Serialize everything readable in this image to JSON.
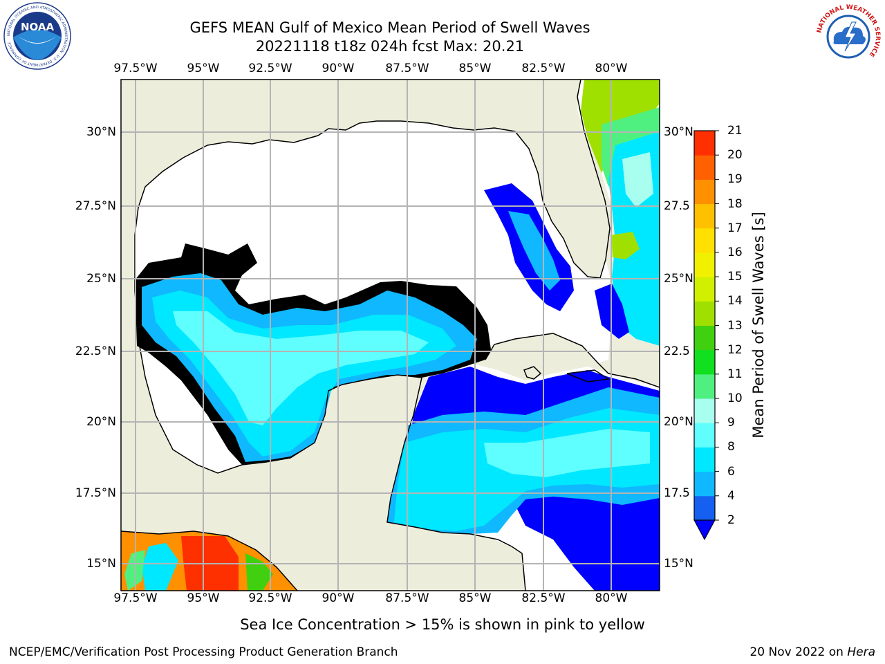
{
  "header": {
    "title_line1": "GEFS MEAN Gulf of Mexico Mean Period of Swell Waves",
    "title_line2": "20221118 t18z 024h fcst   Max: 20.21"
  },
  "axes": {
    "lon_labels": [
      "97.5°W",
      "95°W",
      "92.5°W",
      "90°W",
      "87.5°W",
      "85°W",
      "82.5°W",
      "80°W"
    ],
    "lat_labels": [
      "30°N",
      "27.5°N",
      "25°N",
      "22.5°N",
      "20°N",
      "17.5°N",
      "15°N"
    ],
    "lat_labels_right": [
      "30°N",
      "27.5",
      "25°N",
      "22.5",
      "20°N",
      "17.5",
      "15°N"
    ]
  },
  "colorbar": {
    "label": "Mean Period of Swell Waves [s]",
    "ticks": [
      "2",
      "4",
      "6",
      "8",
      "9",
      "10",
      "11",
      "12",
      "13",
      "14",
      "15",
      "16",
      "17",
      "18",
      "19",
      "20",
      "21"
    ],
    "colors": [
      "#1560f0",
      "#10b8ff",
      "#00e8ff",
      "#60ffff",
      "#a8fff0",
      "#50f080",
      "#10e020",
      "#40d010",
      "#a0e000",
      "#d0f000",
      "#f0f000",
      "#ffe000",
      "#ffc000",
      "#ff9000",
      "#ff6000",
      "#ff3000",
      "#f00000"
    ],
    "under_color": "#0000ff"
  },
  "colors": {
    "land": "#ededdc",
    "no_data": "#ffffff",
    "grid": "#b4b4b4"
  },
  "footer": {
    "note": "Sea Ice Concentration > 15% is shown in pink to yellow",
    "credit": "NCEP/EMC/Verification Post Processing Product Generation Branch",
    "date": "20 Nov 2022 on ",
    "host": "Hera"
  },
  "logos": {
    "noaa_text": "NOAA",
    "noaa_ring": "NATIONAL OCEANIC AND ATMOSPHERIC ADMINISTRATION · U.S. DEPARTMENT OF COMMERCE",
    "nws_ring": "NATIONAL WEATHER SERVICE"
  }
}
